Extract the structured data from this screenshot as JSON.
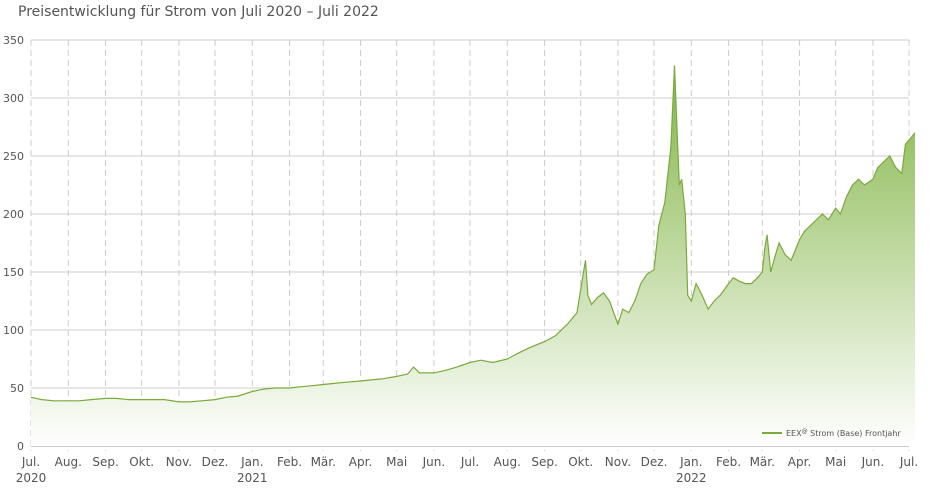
{
  "chart_data": {
    "type": "area",
    "title": "Preisentwicklung für Strom von Juli 2020 – Juli 2022",
    "xlabel": "",
    "ylabel": "",
    "ylim": [
      0,
      350
    ],
    "y_ticks": [
      0,
      50,
      100,
      150,
      200,
      250,
      300,
      350
    ],
    "x_ticks": [
      {
        "date": "2020-07-01",
        "label": "Jul."
      },
      {
        "date": "2020-08-01",
        "label": "Aug."
      },
      {
        "date": "2020-09-01",
        "label": "Sep."
      },
      {
        "date": "2020-10-01",
        "label": "Okt."
      },
      {
        "date": "2020-11-01",
        "label": "Nov."
      },
      {
        "date": "2020-12-01",
        "label": "Dez."
      },
      {
        "date": "2021-01-01",
        "label": "Jan."
      },
      {
        "date": "2021-02-01",
        "label": "Feb."
      },
      {
        "date": "2021-03-01",
        "label": "Mär."
      },
      {
        "date": "2021-04-01",
        "label": "Apr."
      },
      {
        "date": "2021-05-01",
        "label": "Mai"
      },
      {
        "date": "2021-06-01",
        "label": "Jun."
      },
      {
        "date": "2021-07-01",
        "label": "Jul."
      },
      {
        "date": "2021-08-01",
        "label": "Aug."
      },
      {
        "date": "2021-09-01",
        "label": "Sep."
      },
      {
        "date": "2021-10-01",
        "label": "Okt."
      },
      {
        "date": "2021-11-01",
        "label": "Nov."
      },
      {
        "date": "2021-12-01",
        "label": "Dez."
      },
      {
        "date": "2022-01-01",
        "label": "Jan."
      },
      {
        "date": "2022-02-01",
        "label": "Feb."
      },
      {
        "date": "2022-03-01",
        "label": "Mär."
      },
      {
        "date": "2022-04-01",
        "label": "Apr."
      },
      {
        "date": "2022-05-01",
        "label": "Mai"
      },
      {
        "date": "2022-06-01",
        "label": "Jun."
      },
      {
        "date": "2022-07-01",
        "label": "Jul."
      }
    ],
    "year_labels": [
      {
        "date": "2020-07-01",
        "label": "2020"
      },
      {
        "date": "2021-01-01",
        "label": "2021"
      },
      {
        "date": "2022-01-01",
        "label": "2022"
      }
    ],
    "grid": {
      "horizontal": "solid",
      "vertical": "dashed"
    },
    "legend": {
      "position": "bottom-right",
      "prefix": "EEX",
      "superscript": "@",
      "suffix": "Strom (Base) Frontjahr"
    },
    "colors": {
      "line": "#7aaa3c",
      "fill_top": "#82b446",
      "fill_bottom": "#ffffff",
      "grid": "#cccccc"
    },
    "series": [
      {
        "name": "EEX@ Strom (Base) Frontjahr",
        "x": [
          "2020-07-01",
          "2020-07-10",
          "2020-07-20",
          "2020-08-01",
          "2020-08-10",
          "2020-08-20",
          "2020-09-01",
          "2020-09-10",
          "2020-09-20",
          "2020-10-01",
          "2020-10-10",
          "2020-10-20",
          "2020-11-01",
          "2020-11-10",
          "2020-11-20",
          "2020-12-01",
          "2020-12-10",
          "2020-12-20",
          "2021-01-01",
          "2021-01-10",
          "2021-01-20",
          "2021-02-01",
          "2021-02-10",
          "2021-02-20",
          "2021-03-01",
          "2021-03-10",
          "2021-03-20",
          "2021-04-01",
          "2021-04-10",
          "2021-04-20",
          "2021-05-01",
          "2021-05-10",
          "2021-05-15",
          "2021-05-20",
          "2021-06-01",
          "2021-06-10",
          "2021-06-20",
          "2021-07-01",
          "2021-07-10",
          "2021-07-20",
          "2021-08-01",
          "2021-08-10",
          "2021-08-20",
          "2021-09-01",
          "2021-09-10",
          "2021-09-20",
          "2021-09-28",
          "2021-10-01",
          "2021-10-05",
          "2021-10-07",
          "2021-10-10",
          "2021-10-15",
          "2021-10-20",
          "2021-10-25",
          "2021-11-01",
          "2021-11-05",
          "2021-11-10",
          "2021-11-15",
          "2021-11-20",
          "2021-11-25",
          "2021-12-01",
          "2021-12-05",
          "2021-12-10",
          "2021-12-15",
          "2021-12-18",
          "2021-12-21",
          "2021-12-22",
          "2021-12-24",
          "2021-12-27",
          "2021-12-29",
          "2022-01-01",
          "2022-01-05",
          "2022-01-10",
          "2022-01-15",
          "2022-01-20",
          "2022-01-25",
          "2022-02-01",
          "2022-02-05",
          "2022-02-10",
          "2022-02-15",
          "2022-02-20",
          "2022-02-25",
          "2022-03-01",
          "2022-03-03",
          "2022-03-05",
          "2022-03-08",
          "2022-03-12",
          "2022-03-15",
          "2022-03-20",
          "2022-03-25",
          "2022-04-01",
          "2022-04-05",
          "2022-04-10",
          "2022-04-15",
          "2022-04-20",
          "2022-04-25",
          "2022-05-01",
          "2022-05-05",
          "2022-05-10",
          "2022-05-15",
          "2022-05-20",
          "2022-05-25",
          "2022-06-01",
          "2022-06-05",
          "2022-06-10",
          "2022-06-15",
          "2022-06-20",
          "2022-06-25",
          "2022-06-28",
          "2022-07-02",
          "2022-07-06"
        ],
        "y": [
          42,
          40,
          39,
          39,
          39,
          40,
          41,
          41,
          40,
          40,
          40,
          40,
          38,
          38,
          39,
          40,
          42,
          43,
          47,
          49,
          50,
          50,
          51,
          52,
          53,
          54,
          55,
          56,
          57,
          58,
          60,
          62,
          68,
          63,
          63,
          65,
          68,
          72,
          74,
          72,
          75,
          80,
          85,
          90,
          95,
          105,
          115,
          135,
          160,
          130,
          122,
          128,
          132,
          125,
          105,
          118,
          115,
          125,
          140,
          148,
          152,
          190,
          210,
          258,
          328,
          250,
          225,
          230,
          200,
          130,
          125,
          140,
          130,
          118,
          125,
          130,
          140,
          145,
          142,
          140,
          140,
          145,
          150,
          170,
          182,
          150,
          165,
          175,
          165,
          160,
          178,
          185,
          190,
          195,
          200,
          195,
          205,
          200,
          215,
          225,
          230,
          225,
          230,
          240,
          245,
          250,
          240,
          235,
          260,
          265,
          270
        ]
      }
    ]
  }
}
